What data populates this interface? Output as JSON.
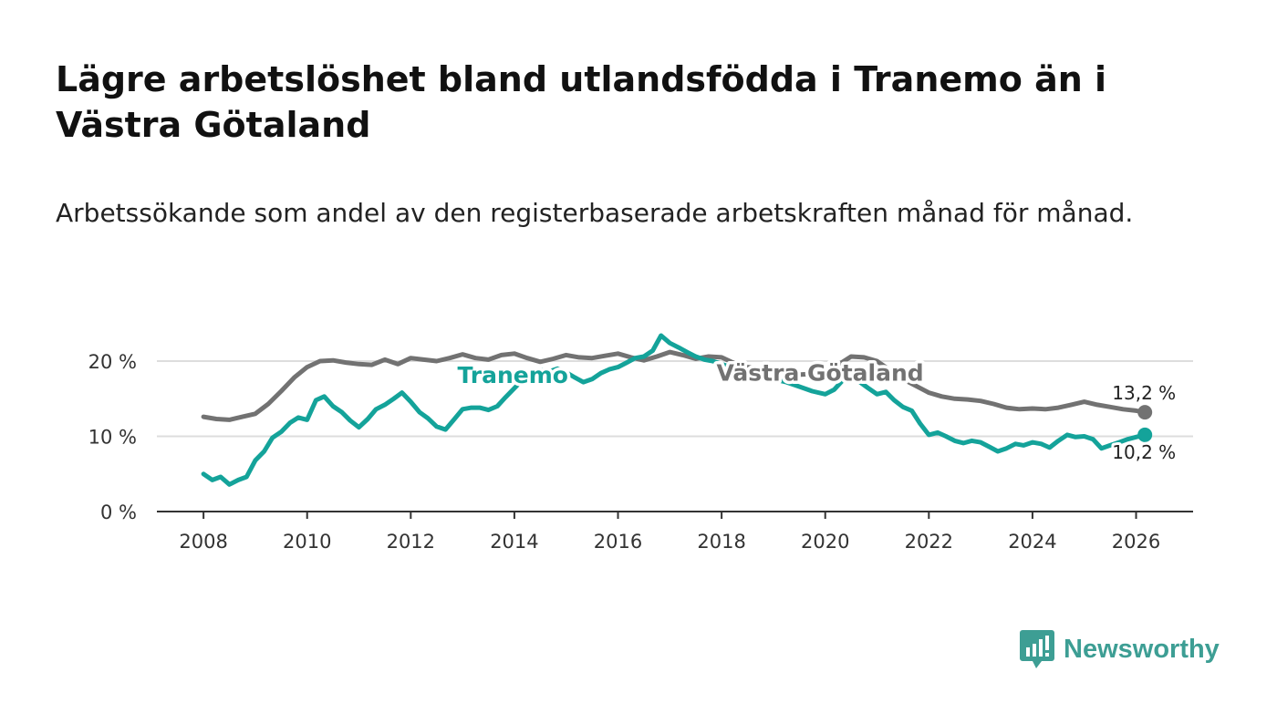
{
  "title": "Lägre arbetslöshet bland utlandsfödda i Tranemo än i Västra Götaland",
  "subtitle": "Arbetssökande som andel av den registerbaserade arbetskraften månad för månad.",
  "brand": {
    "name": "Newsworthy",
    "color": "#3d9e94"
  },
  "colors": {
    "tranemo": "#14a39a",
    "vg": "#727272",
    "grid": "#dddddd",
    "axis": "#333333"
  },
  "chart_data": {
    "type": "line",
    "title": "Lägre arbetslöshet bland utlandsfödda i Tranemo än i Västra Götaland",
    "xlabel": "",
    "ylabel": "",
    "xlim": [
      2007.1,
      2027.1
    ],
    "ylim": [
      0,
      20
    ],
    "grid": true,
    "x_ticks": [
      2008,
      2010,
      2012,
      2014,
      2016,
      2018,
      2020,
      2022,
      2024,
      2026
    ],
    "x_tick_labels": [
      "2008",
      "2010",
      "2012",
      "2014",
      "2016",
      "2018",
      "2020",
      "2022",
      "2024",
      "2026"
    ],
    "y_ticks": [
      0,
      10,
      20
    ],
    "y_tick_labels": [
      "0 %",
      "10 %",
      "20 %"
    ],
    "series": [
      {
        "name": "Västra Götaland",
        "color": "#727272",
        "label": "Västra Götaland",
        "end_label": "13,2 %",
        "points": [
          [
            2008.0,
            12.6
          ],
          [
            2008.25,
            12.3
          ],
          [
            2008.5,
            12.2
          ],
          [
            2008.75,
            12.6
          ],
          [
            2009.0,
            13.0
          ],
          [
            2009.25,
            14.3
          ],
          [
            2009.5,
            16.0
          ],
          [
            2009.75,
            17.8
          ],
          [
            2010.0,
            19.2
          ],
          [
            2010.25,
            20.0
          ],
          [
            2010.5,
            20.1
          ],
          [
            2010.75,
            19.8
          ],
          [
            2011.0,
            19.6
          ],
          [
            2011.25,
            19.5
          ],
          [
            2011.5,
            20.2
          ],
          [
            2011.75,
            19.6
          ],
          [
            2012.0,
            20.4
          ],
          [
            2012.25,
            20.2
          ],
          [
            2012.5,
            20.0
          ],
          [
            2012.75,
            20.4
          ],
          [
            2013.0,
            20.9
          ],
          [
            2013.25,
            20.4
          ],
          [
            2013.5,
            20.2
          ],
          [
            2013.75,
            20.8
          ],
          [
            2014.0,
            21.0
          ],
          [
            2014.25,
            20.4
          ],
          [
            2014.5,
            19.9
          ],
          [
            2014.75,
            20.3
          ],
          [
            2015.0,
            20.8
          ],
          [
            2015.25,
            20.5
          ],
          [
            2015.5,
            20.4
          ],
          [
            2015.75,
            20.7
          ],
          [
            2016.0,
            21.0
          ],
          [
            2016.25,
            20.5
          ],
          [
            2016.5,
            20.1
          ],
          [
            2016.75,
            20.6
          ],
          [
            2017.0,
            21.2
          ],
          [
            2017.25,
            20.8
          ],
          [
            2017.5,
            20.3
          ],
          [
            2017.75,
            20.6
          ],
          [
            2018.0,
            20.5
          ],
          [
            2018.25,
            19.7
          ],
          [
            2018.5,
            19.2
          ],
          [
            2018.75,
            19.0
          ],
          [
            2019.0,
            18.9
          ],
          [
            2019.25,
            18.5
          ],
          [
            2019.5,
            18.2
          ],
          [
            2019.75,
            18.3
          ],
          [
            2020.0,
            18.7
          ],
          [
            2020.25,
            19.5
          ],
          [
            2020.5,
            20.6
          ],
          [
            2020.75,
            20.5
          ],
          [
            2021.0,
            20.0
          ],
          [
            2021.25,
            18.8
          ],
          [
            2021.5,
            17.6
          ],
          [
            2021.75,
            16.7
          ],
          [
            2022.0,
            15.8
          ],
          [
            2022.25,
            15.3
          ],
          [
            2022.5,
            15.0
          ],
          [
            2022.75,
            14.9
          ],
          [
            2023.0,
            14.7
          ],
          [
            2023.25,
            14.3
          ],
          [
            2023.5,
            13.8
          ],
          [
            2023.75,
            13.6
          ],
          [
            2024.0,
            13.7
          ],
          [
            2024.25,
            13.6
          ],
          [
            2024.5,
            13.8
          ],
          [
            2024.75,
            14.2
          ],
          [
            2025.0,
            14.6
          ],
          [
            2025.25,
            14.2
          ],
          [
            2025.5,
            13.9
          ],
          [
            2025.75,
            13.6
          ],
          [
            2026.0,
            13.4
          ],
          [
            2026.17,
            13.2
          ]
        ]
      },
      {
        "name": "Tranemo",
        "color": "#14a39a",
        "label": "Tranemo",
        "end_label": "10,2 %",
        "points": [
          [
            2008.0,
            5.0
          ],
          [
            2008.17,
            4.2
          ],
          [
            2008.33,
            4.6
          ],
          [
            2008.5,
            3.6
          ],
          [
            2008.67,
            4.2
          ],
          [
            2008.83,
            4.6
          ],
          [
            2009.0,
            6.8
          ],
          [
            2009.17,
            8.0
          ],
          [
            2009.33,
            9.8
          ],
          [
            2009.5,
            10.6
          ],
          [
            2009.67,
            11.8
          ],
          [
            2009.83,
            12.5
          ],
          [
            2010.0,
            12.2
          ],
          [
            2010.17,
            14.8
          ],
          [
            2010.33,
            15.3
          ],
          [
            2010.5,
            14.0
          ],
          [
            2010.67,
            13.2
          ],
          [
            2010.83,
            12.1
          ],
          [
            2011.0,
            11.2
          ],
          [
            2011.17,
            12.3
          ],
          [
            2011.33,
            13.6
          ],
          [
            2011.5,
            14.2
          ],
          [
            2011.67,
            15.0
          ],
          [
            2011.83,
            15.8
          ],
          [
            2012.0,
            14.6
          ],
          [
            2012.17,
            13.2
          ],
          [
            2012.33,
            12.4
          ],
          [
            2012.5,
            11.3
          ],
          [
            2012.67,
            10.9
          ],
          [
            2012.83,
            12.2
          ],
          [
            2013.0,
            13.6
          ],
          [
            2013.17,
            13.8
          ],
          [
            2013.33,
            13.8
          ],
          [
            2013.5,
            13.5
          ],
          [
            2013.67,
            14.0
          ],
          [
            2013.83,
            15.2
          ],
          [
            2014.0,
            16.4
          ],
          [
            2014.17,
            17.6
          ],
          [
            2014.33,
            18.4
          ],
          [
            2014.5,
            18.8
          ],
          [
            2014.67,
            18.6
          ],
          [
            2014.83,
            19.0
          ],
          [
            2015.0,
            18.5
          ],
          [
            2015.17,
            17.8
          ],
          [
            2015.33,
            17.2
          ],
          [
            2015.5,
            17.6
          ],
          [
            2015.67,
            18.4
          ],
          [
            2015.83,
            18.9
          ],
          [
            2016.0,
            19.2
          ],
          [
            2016.17,
            19.8
          ],
          [
            2016.33,
            20.4
          ],
          [
            2016.5,
            20.6
          ],
          [
            2016.67,
            21.4
          ],
          [
            2016.83,
            23.4
          ],
          [
            2017.0,
            22.4
          ],
          [
            2017.17,
            21.8
          ],
          [
            2017.33,
            21.2
          ],
          [
            2017.5,
            20.6
          ],
          [
            2017.67,
            20.2
          ],
          [
            2017.83,
            20.0
          ],
          [
            2018.0,
            19.6
          ],
          [
            2018.25,
            19.0
          ],
          [
            2018.5,
            18.6
          ],
          [
            2018.75,
            18.0
          ],
          [
            2019.0,
            17.6
          ],
          [
            2019.25,
            17.2
          ],
          [
            2019.5,
            16.6
          ],
          [
            2019.75,
            16.0
          ],
          [
            2020.0,
            15.6
          ],
          [
            2020.17,
            16.2
          ],
          [
            2020.33,
            17.4
          ],
          [
            2020.5,
            17.8
          ],
          [
            2020.67,
            17.2
          ],
          [
            2020.83,
            16.4
          ],
          [
            2021.0,
            15.6
          ],
          [
            2021.17,
            15.9
          ],
          [
            2021.33,
            14.8
          ],
          [
            2021.5,
            13.9
          ],
          [
            2021.67,
            13.4
          ],
          [
            2021.83,
            11.7
          ],
          [
            2022.0,
            10.2
          ],
          [
            2022.17,
            10.5
          ],
          [
            2022.33,
            10.0
          ],
          [
            2022.5,
            9.4
          ],
          [
            2022.67,
            9.1
          ],
          [
            2022.83,
            9.4
          ],
          [
            2023.0,
            9.2
          ],
          [
            2023.17,
            8.6
          ],
          [
            2023.33,
            8.0
          ],
          [
            2023.5,
            8.4
          ],
          [
            2023.67,
            9.0
          ],
          [
            2023.83,
            8.8
          ],
          [
            2024.0,
            9.2
          ],
          [
            2024.17,
            9.0
          ],
          [
            2024.33,
            8.5
          ],
          [
            2024.5,
            9.4
          ],
          [
            2024.67,
            10.2
          ],
          [
            2024.83,
            9.9
          ],
          [
            2025.0,
            10.0
          ],
          [
            2025.17,
            9.6
          ],
          [
            2025.33,
            8.4
          ],
          [
            2025.5,
            8.8
          ],
          [
            2025.67,
            9.2
          ],
          [
            2025.83,
            9.6
          ],
          [
            2026.0,
            9.9
          ],
          [
            2026.17,
            10.2
          ]
        ]
      }
    ]
  }
}
